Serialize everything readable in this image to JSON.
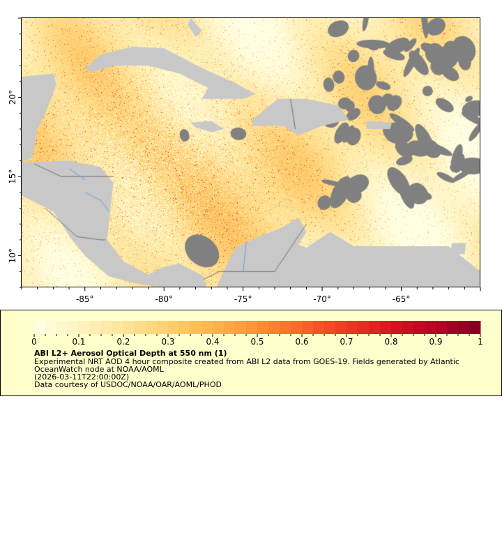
{
  "map": {
    "lon_range": [
      -89,
      -60
    ],
    "lat_range": [
      8,
      25
    ],
    "lon_ticks": [
      {
        "value": -85,
        "label": "-85°"
      },
      {
        "value": -80,
        "label": "-80°"
      },
      {
        "value": -75,
        "label": "-75°"
      },
      {
        "value": -70,
        "label": "-70°"
      },
      {
        "value": -65,
        "label": "-65°"
      }
    ],
    "lat_ticks": [
      {
        "value": 10,
        "label": "10°"
      },
      {
        "value": 15,
        "label": "15°"
      },
      {
        "value": 20,
        "label": "20°"
      }
    ],
    "colors": {
      "land": "#c8c8c8",
      "no_data": "#808080",
      "rivers": "#6a9fd8",
      "borders": "#707070"
    }
  },
  "legend": {
    "colorbar": {
      "min": 0,
      "max": 1,
      "tick_labels": [
        "0",
        "0.1",
        "0.2",
        "0.3",
        "0.4",
        "0.5",
        "0.6",
        "0.7",
        "0.8",
        "0.9",
        "1"
      ],
      "palette": [
        "#ffffe5",
        "#fff3c0",
        "#fee59a",
        "#fecf70",
        "#fdb451",
        "#fc9039",
        "#f8652a",
        "#ec3a22",
        "#d6161f",
        "#b70026",
        "#800026"
      ]
    },
    "title": "ABI L2+ Aerosol Optical Depth at 550 nm (1)",
    "line1": "Experimental NRT AOD 4 hour composite created from ABI L2 data from GOES-19. Fields generated by Atlantic",
    "line2": "OceanWatch node at NOAA/AOML",
    "line3": "(2026-03-11T22:00:00Z)",
    "line4": "Data courtesy of USDOC/NOAA/OAR/AOML/PHOD",
    "background": "#ffffcc"
  }
}
